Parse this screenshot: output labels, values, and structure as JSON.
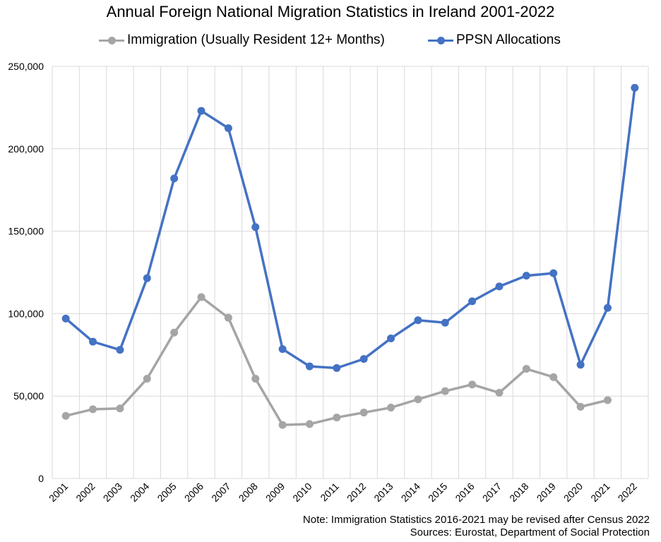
{
  "colors": {
    "immigration": "#A5A5A5",
    "ppsn": "#4472C4",
    "grid": "#D9D9D9"
  },
  "chart_data": {
    "type": "line",
    "title": "Annual Foreign National Migration Statistics in Ireland 2001-2022",
    "x": [
      "2001",
      "2002",
      "2003",
      "2004",
      "2005",
      "2006",
      "2007",
      "2008",
      "2009",
      "2010",
      "2011",
      "2012",
      "2013",
      "2014",
      "2015",
      "2016",
      "2017",
      "2018",
      "2019",
      "2020",
      "2021",
      "2022"
    ],
    "series": [
      {
        "name": "Immigration (Usually Resident 12+ Months)",
        "values": [
          38000,
          42000,
          42500,
          60500,
          88500,
          110000,
          97500,
          60500,
          32500,
          33000,
          37000,
          40000,
          43000,
          48000,
          53000,
          57000,
          52000,
          66500,
          61500,
          43500,
          47500,
          null
        ]
      },
      {
        "name": "PPSN Allocations",
        "values": [
          97000,
          83000,
          78000,
          121500,
          182000,
          223000,
          212500,
          152500,
          78500,
          68000,
          67000,
          72500,
          85000,
          96000,
          94500,
          107500,
          116500,
          123000,
          124500,
          69000,
          103500,
          237000
        ]
      }
    ],
    "ylim": [
      0,
      250000
    ],
    "yticks": [
      "0",
      "50,000",
      "100,000",
      "150,000",
      "200,000",
      "250,000"
    ],
    "ytick_values": [
      0,
      50000,
      100000,
      150000,
      200000,
      250000
    ],
    "xlabel": "",
    "ylabel": "",
    "legend": "top",
    "grid": true
  },
  "notes": {
    "line1": "Note: Immigration Statistics 2016-2021 may be revised after Census 2022",
    "line2": "Sources: Eurostat, Department of Social Protection"
  }
}
